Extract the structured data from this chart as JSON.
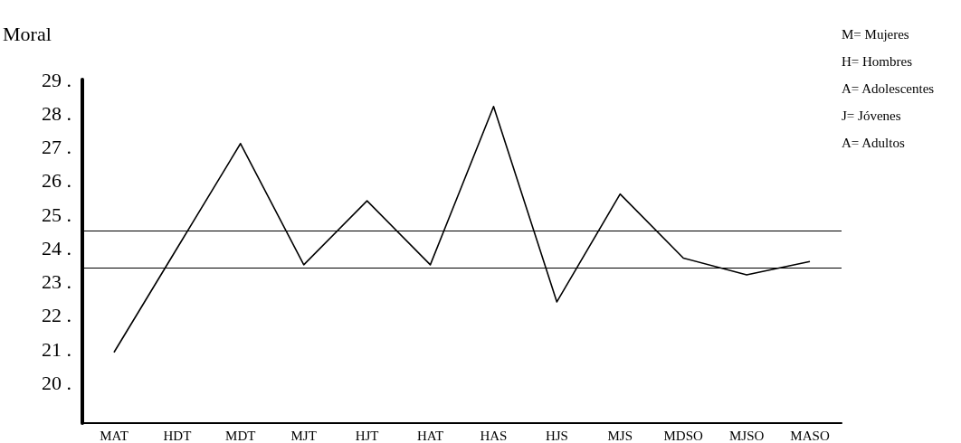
{
  "chart_data": {
    "type": "line",
    "ylabel": "Moral",
    "categories": [
      "MAT",
      "HDT",
      "MDT",
      "MJT",
      "HJT",
      "HAT",
      "HAS",
      "HJS",
      "MJS",
      "MDSO",
      "MJSO",
      "MASO"
    ],
    "series": [
      {
        "color": "#000000",
        "values": [
          20.9,
          24.0,
          27.1,
          23.5,
          25.4,
          23.5,
          28.2,
          22.4,
          25.6,
          23.7,
          23.2,
          23.6
        ]
      }
    ],
    "ylim": [
      18.8,
      29
    ],
    "yticks": [
      {
        "value": 20,
        "label": "20 ."
      },
      {
        "value": 21,
        "label": "21 ."
      },
      {
        "value": 22,
        "label": "22 ."
      },
      {
        "value": 23,
        "label": "23 ."
      },
      {
        "value": 24,
        "label": "24 ."
      },
      {
        "value": 25,
        "label": "25 ."
      },
      {
        "value": 26,
        "label": "26 ."
      },
      {
        "value": 27,
        "label": "27 ."
      },
      {
        "value": 28,
        "label": "28 ."
      },
      {
        "value": 29,
        "label": "29 ."
      }
    ],
    "ref_lines": [
      {
        "axis": "y",
        "value": 24.5,
        "color": "#000000"
      },
      {
        "axis": "y",
        "value": 23.4,
        "color": "#000000"
      }
    ],
    "annotations": [
      "M= Mujeres",
      "H= Hombres",
      "A= Adolescentes",
      "J= Jóvenes",
      "A= Adultos"
    ],
    "grid": false,
    "marker": "none",
    "line_style": "solid"
  }
}
